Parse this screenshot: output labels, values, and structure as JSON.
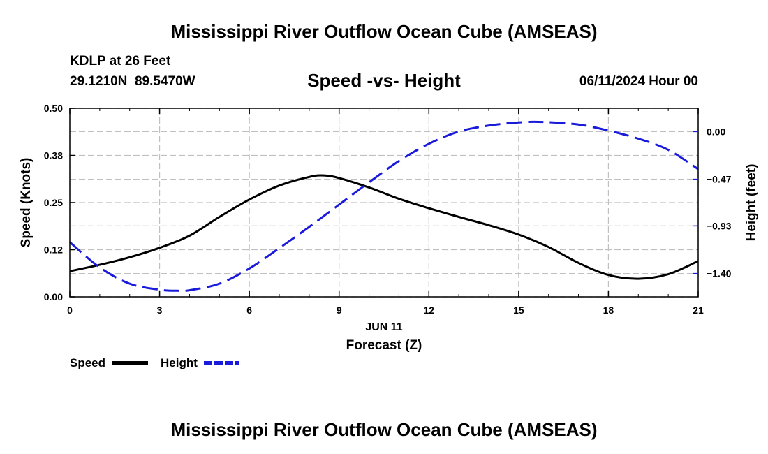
{
  "page": {
    "title_top": "Mississippi River Outflow Ocean Cube (AMSEAS)",
    "title_bottom": "Mississippi River Outflow Ocean Cube (AMSEAS)",
    "station_line": "KDLP at 26 Feet",
    "coords_line": "29.1210N  89.5470W",
    "datetime": "06/11/2024 Hour 00"
  },
  "colors": {
    "speed": "#000000",
    "height": "#1a1adb",
    "grid": "#c0c0c0"
  },
  "chart_data": {
    "type": "line",
    "title": "Speed -vs- Height",
    "xlabel": "Forecast (Z)",
    "date_label": "JUN 11",
    "ylabel": "Speed (Knots)",
    "y2label": "Height (feet)",
    "xlim": [
      0,
      21
    ],
    "ylim": [
      0,
      0.5
    ],
    "y2lim": [
      -1.63,
      0.23
    ],
    "x_ticks": [
      "0",
      "3",
      "6",
      "9",
      "12",
      "15",
      "18",
      "21"
    ],
    "x_tick_values": [
      0,
      3,
      6,
      9,
      12,
      15,
      18,
      21
    ],
    "y_ticks": [
      "0.00",
      "0.12",
      "0.25",
      "0.38",
      "0.50"
    ],
    "y_tick_values": [
      0,
      0.125,
      0.25,
      0.375,
      0.5
    ],
    "y2_ticks": [
      "0.00",
      "−0.47",
      "−0.93",
      "−1.40"
    ],
    "y2_tick_values": [
      0,
      -0.47,
      -0.93,
      -1.4
    ],
    "grid": true,
    "legend_position": "bottom-left",
    "series": [
      {
        "name": "Speed",
        "axis": "left",
        "style": "solid",
        "x": [
          0,
          1,
          2,
          3,
          4,
          5,
          6,
          7,
          8,
          8.5,
          9,
          10,
          11,
          12,
          13,
          14,
          15,
          16,
          17,
          18,
          19,
          20,
          21
        ],
        "values": [
          0.068,
          0.085,
          0.105,
          0.13,
          0.162,
          0.212,
          0.258,
          0.295,
          0.318,
          0.322,
          0.315,
          0.29,
          0.26,
          0.235,
          0.212,
          0.19,
          0.165,
          0.132,
          0.09,
          0.058,
          0.048,
          0.06,
          0.095
        ]
      },
      {
        "name": "Height",
        "axis": "right",
        "style": "dashed",
        "x": [
          0,
          1,
          2,
          3,
          3.6,
          4,
          5,
          6,
          7,
          8,
          9,
          10,
          11,
          12,
          13,
          14,
          15,
          15.8,
          17,
          18,
          19,
          20,
          21
        ],
        "values": [
          -1.09,
          -1.34,
          -1.5,
          -1.56,
          -1.57,
          -1.565,
          -1.5,
          -1.35,
          -1.15,
          -0.94,
          -0.72,
          -0.5,
          -0.29,
          -0.12,
          0.0,
          0.06,
          0.09,
          0.095,
          0.07,
          0.01,
          -0.07,
          -0.18,
          -0.37
        ]
      }
    ]
  }
}
